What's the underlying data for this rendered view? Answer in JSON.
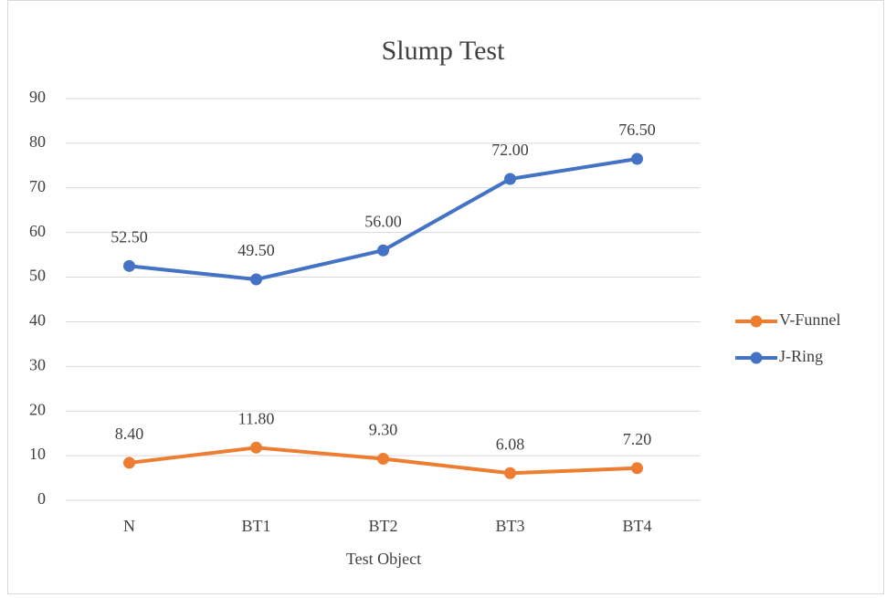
{
  "chart_data": {
    "type": "line",
    "title": "Slump Test",
    "x_label": "Test Object",
    "categories": [
      "N",
      "BT1",
      "BT2",
      "BT3",
      "BT4"
    ],
    "series": [
      {
        "name": "V-Funnel",
        "color": "#ed7d31",
        "values": [
          8.4,
          11.8,
          9.3,
          6.08,
          7.2
        ],
        "value_labels": [
          "8.40",
          "11.80",
          "9.30",
          "6.08",
          "7.20"
        ]
      },
      {
        "name": "J-Ring",
        "color": "#4472c4",
        "values": [
          52.5,
          49.5,
          56,
          72,
          76.5
        ],
        "value_labels": [
          "52.50",
          "49.50",
          "56.00",
          "72.00",
          "76.50"
        ]
      }
    ],
    "ylim": [
      0,
      90
    ],
    "yticks": [
      0,
      10,
      20,
      30,
      40,
      50,
      60,
      70,
      80,
      90
    ],
    "grid": true,
    "legend": "right"
  }
}
